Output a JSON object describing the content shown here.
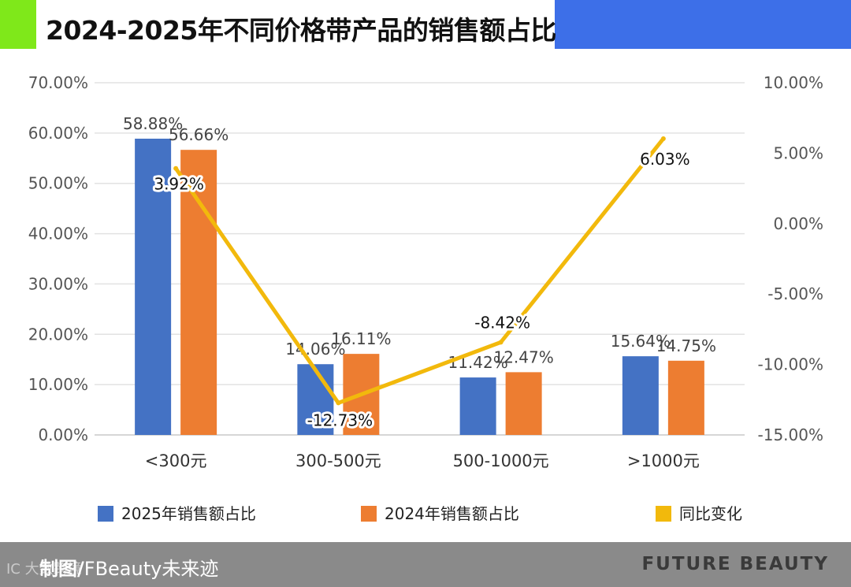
{
  "header": {
    "title": "2024-2025年不同价格带产品的销售额占比",
    "accent_green": "#7FE81A",
    "accent_blue": "#3D6FE8"
  },
  "chart_data": {
    "type": "bar",
    "categories": [
      "<300元",
      "300-500元",
      "500-1000元",
      ">1000元"
    ],
    "series": [
      {
        "name": "2025年销售额占比",
        "type": "bar",
        "axis": "left",
        "color": "#4472C4",
        "values": [
          58.88,
          14.06,
          11.42,
          15.64
        ],
        "labels": [
          "58.88%",
          "14.06%",
          "11.42%",
          "15.64%"
        ]
      },
      {
        "name": "2024年销售额占比",
        "type": "bar",
        "axis": "left",
        "color": "#ED7D31",
        "values": [
          56.66,
          16.11,
          12.47,
          14.75
        ],
        "labels": [
          "56.66%",
          "16.11%",
          "12.47%",
          "14.75%"
        ]
      },
      {
        "name": "同比变化",
        "type": "line",
        "axis": "right",
        "color": "#F2B90C",
        "values": [
          3.92,
          -12.73,
          -8.42,
          6.03
        ],
        "labels": [
          "3.92%",
          "-12.73%",
          "-8.42%",
          "6.03%"
        ]
      }
    ],
    "y_left": {
      "min": 0,
      "max": 70,
      "ticks": [
        "0.00%",
        "10.00%",
        "20.00%",
        "30.00%",
        "40.00%",
        "50.00%",
        "60.00%",
        "70.00%"
      ]
    },
    "y_right": {
      "min": -15,
      "max": 10,
      "ticks": [
        "-15.00%",
        "-10.00%",
        "-5.00%",
        "0.00%",
        "5.00%",
        "10.00%"
      ]
    },
    "grid": true,
    "legend_position": "bottom"
  },
  "legend": [
    {
      "label": "2025年销售额占比",
      "color": "#4472C4"
    },
    {
      "label": "2024年销售额占比",
      "color": "#ED7D31"
    },
    {
      "label": "同比变化",
      "color": "#F2B90C"
    }
  ],
  "footer": {
    "credit_prefix": "制图/",
    "credit_name": "FBeauty未来迹",
    "brand": "FUTURE BEAUTY",
    "watermark": "IC  大数跨境"
  }
}
